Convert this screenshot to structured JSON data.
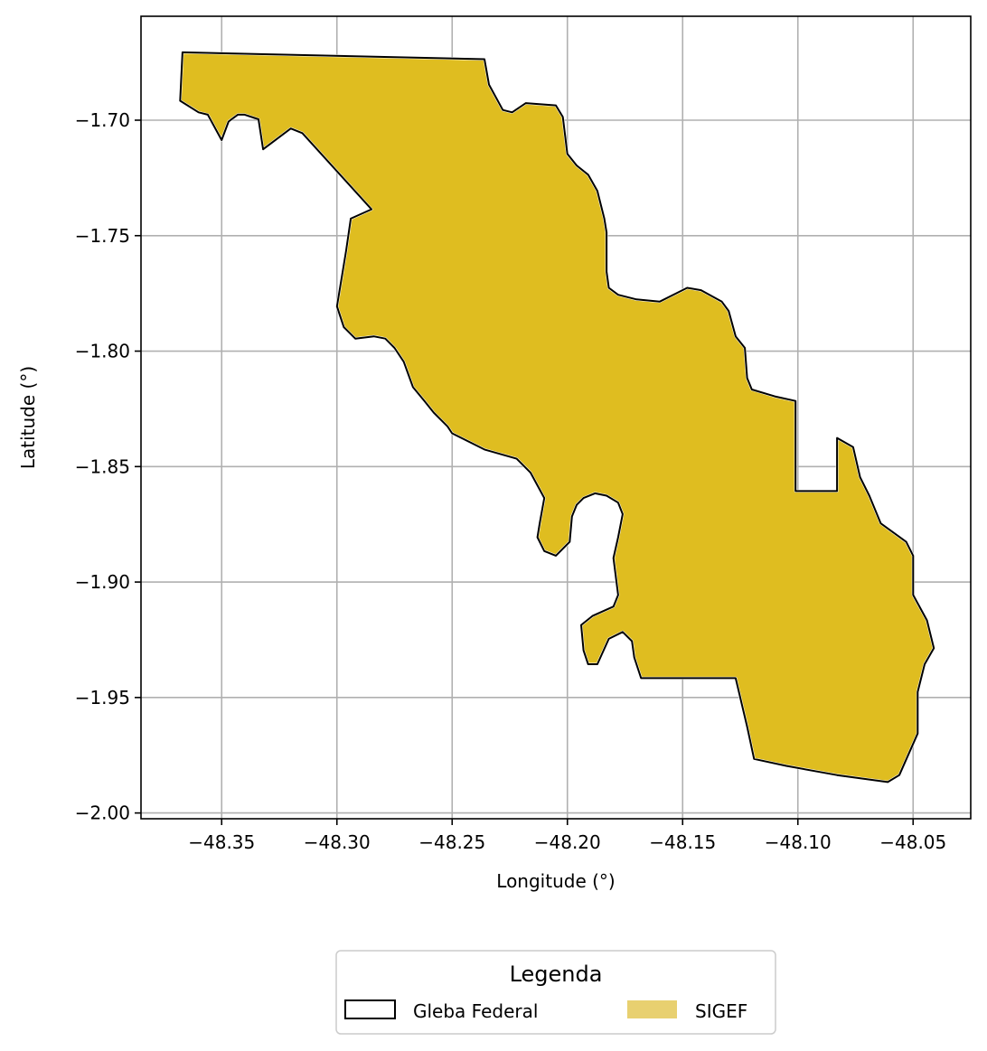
{
  "chart_data": {
    "type": "map",
    "xlabel": "Longitude (°)",
    "ylabel": "Latitude (°)",
    "xlim": [
      -48.385,
      -48.025
    ],
    "ylim": [
      -2.0025,
      -1.655
    ],
    "x_ticks": [
      -48.35,
      -48.3,
      -48.25,
      -48.2,
      -48.15,
      -48.1,
      -48.05
    ],
    "x_tick_labels": [
      "−48.35",
      "−48.30",
      "−48.25",
      "−48.20",
      "−48.15",
      "−48.10",
      "−48.05"
    ],
    "y_ticks": [
      -1.7,
      -1.75,
      -1.8,
      -1.85,
      -1.9,
      -1.95,
      -2.0
    ],
    "y_tick_labels": [
      "−1.70",
      "−1.75",
      "−1.80",
      "−1.85",
      "−1.90",
      "−1.95",
      "−2.00"
    ],
    "grid": true,
    "legend": {
      "title": "Legenda",
      "placement": "bottom-center",
      "entries": [
        {
          "label": "Gleba Federal",
          "style": "outline",
          "color": "#000000"
        },
        {
          "label": "SIGEF",
          "style": "fill",
          "color": "#e8d070"
        }
      ]
    },
    "layers": [
      {
        "name": "SIGEF",
        "fill": "#dfbd20",
        "stroke": "#ffffff",
        "coordinates": [
          [
            -48.367,
            -1.6706
          ],
          [
            -48.236,
            -1.6736
          ],
          [
            -48.234,
            -1.6846
          ],
          [
            -48.228,
            -1.6956
          ],
          [
            -48.224,
            -1.6966
          ],
          [
            -48.218,
            -1.6926
          ],
          [
            -48.205,
            -1.6936
          ],
          [
            -48.202,
            -1.6986
          ],
          [
            -48.2,
            -1.7146
          ],
          [
            -48.196,
            -1.7196
          ],
          [
            -48.191,
            -1.7236
          ],
          [
            -48.187,
            -1.7306
          ],
          [
            -48.184,
            -1.7426
          ],
          [
            -48.183,
            -1.7486
          ],
          [
            -48.183,
            -1.7656
          ],
          [
            -48.182,
            -1.7726
          ],
          [
            -48.178,
            -1.7756
          ],
          [
            -48.17,
            -1.7776
          ],
          [
            -48.16,
            -1.7786
          ],
          [
            -48.152,
            -1.7746
          ],
          [
            -48.148,
            -1.7726
          ],
          [
            -48.142,
            -1.7736
          ],
          [
            -48.133,
            -1.7786
          ],
          [
            -48.13,
            -1.7826
          ],
          [
            -48.127,
            -1.7936
          ],
          [
            -48.123,
            -1.7986
          ],
          [
            -48.122,
            -1.8116
          ],
          [
            -48.12,
            -1.8166
          ],
          [
            -48.11,
            -1.8196
          ],
          [
            -48.101,
            -1.8216
          ],
          [
            -48.101,
            -1.8606
          ],
          [
            -48.083,
            -1.8606
          ],
          [
            -48.083,
            -1.8376
          ],
          [
            -48.076,
            -1.8416
          ],
          [
            -48.073,
            -1.8546
          ],
          [
            -48.069,
            -1.8626
          ],
          [
            -48.064,
            -1.8746
          ],
          [
            -48.053,
            -1.8826
          ],
          [
            -48.05,
            -1.8886
          ],
          [
            -48.05,
            -1.9056
          ],
          [
            -48.044,
            -1.9166
          ],
          [
            -48.041,
            -1.9286
          ],
          [
            -48.045,
            -1.9356
          ],
          [
            -48.048,
            -1.9476
          ],
          [
            -48.048,
            -1.9656
          ],
          [
            -48.056,
            -1.9836
          ],
          [
            -48.061,
            -1.9866
          ],
          [
            -48.083,
            -1.9836
          ],
          [
            -48.105,
            -1.9796
          ],
          [
            -48.119,
            -1.9766
          ],
          [
            -48.122,
            -1.9626
          ],
          [
            -48.127,
            -1.9416
          ],
          [
            -48.154,
            -1.9416
          ],
          [
            -48.168,
            -1.9416
          ],
          [
            -48.171,
            -1.9326
          ],
          [
            -48.172,
            -1.9256
          ],
          [
            -48.176,
            -1.9216
          ],
          [
            -48.182,
            -1.9246
          ],
          [
            -48.187,
            -1.9356
          ],
          [
            -48.191,
            -1.9356
          ],
          [
            -48.193,
            -1.9296
          ],
          [
            -48.194,
            -1.9186
          ],
          [
            -48.189,
            -1.9146
          ],
          [
            -48.18,
            -1.9106
          ],
          [
            -48.178,
            -1.9056
          ],
          [
            -48.18,
            -1.8896
          ],
          [
            -48.178,
            -1.8806
          ],
          [
            -48.176,
            -1.8706
          ],
          [
            -48.178,
            -1.8656
          ],
          [
            -48.183,
            -1.8626
          ],
          [
            -48.188,
            -1.8616
          ],
          [
            -48.193,
            -1.8636
          ],
          [
            -48.196,
            -1.8666
          ],
          [
            -48.198,
            -1.8716
          ],
          [
            -48.199,
            -1.8826
          ],
          [
            -48.203,
            -1.8866
          ],
          [
            -48.205,
            -1.8886
          ],
          [
            -48.21,
            -1.8866
          ],
          [
            -48.213,
            -1.8806
          ],
          [
            -48.212,
            -1.8746
          ],
          [
            -48.21,
            -1.8636
          ],
          [
            -48.216,
            -1.8526
          ],
          [
            -48.222,
            -1.8466
          ],
          [
            -48.236,
            -1.8426
          ],
          [
            -48.25,
            -1.8356
          ],
          [
            -48.252,
            -1.8326
          ],
          [
            -48.258,
            -1.8266
          ],
          [
            -48.262,
            -1.8216
          ],
          [
            -48.267,
            -1.8156
          ],
          [
            -48.271,
            -1.8046
          ],
          [
            -48.275,
            -1.7986
          ],
          [
            -48.279,
            -1.7946
          ],
          [
            -48.284,
            -1.7936
          ],
          [
            -48.292,
            -1.7946
          ],
          [
            -48.297,
            -1.7896
          ],
          [
            -48.3,
            -1.7806
          ],
          [
            -48.296,
            -1.7566
          ],
          [
            -48.294,
            -1.7426
          ],
          [
            -48.285,
            -1.7386
          ],
          [
            -48.315,
            -1.7056
          ],
          [
            -48.32,
            -1.7036
          ],
          [
            -48.332,
            -1.7126
          ],
          [
            -48.334,
            -1.6996
          ],
          [
            -48.34,
            -1.6976
          ],
          [
            -48.343,
            -1.6976
          ],
          [
            -48.347,
            -1.7006
          ],
          [
            -48.35,
            -1.7086
          ],
          [
            -48.356,
            -1.6976
          ],
          [
            -48.36,
            -1.6966
          ],
          [
            -48.368,
            -1.6916
          ]
        ]
      },
      {
        "name": "Gleba Federal",
        "fill": "none",
        "stroke": "#000000",
        "coordinates": [
          [
            -48.367,
            -1.6706
          ],
          [
            -48.236,
            -1.6736
          ],
          [
            -48.234,
            -1.6846
          ],
          [
            -48.228,
            -1.6956
          ],
          [
            -48.224,
            -1.6966
          ],
          [
            -48.218,
            -1.6926
          ],
          [
            -48.205,
            -1.6936
          ],
          [
            -48.202,
            -1.6986
          ],
          [
            -48.2,
            -1.7146
          ],
          [
            -48.196,
            -1.7196
          ],
          [
            -48.191,
            -1.7236
          ],
          [
            -48.187,
            -1.7306
          ],
          [
            -48.184,
            -1.7426
          ],
          [
            -48.183,
            -1.7486
          ],
          [
            -48.183,
            -1.7656
          ],
          [
            -48.182,
            -1.7726
          ],
          [
            -48.178,
            -1.7756
          ],
          [
            -48.17,
            -1.7776
          ],
          [
            -48.16,
            -1.7786
          ],
          [
            -48.152,
            -1.7746
          ],
          [
            -48.148,
            -1.7726
          ],
          [
            -48.142,
            -1.7736
          ],
          [
            -48.133,
            -1.7786
          ],
          [
            -48.13,
            -1.7826
          ],
          [
            -48.127,
            -1.7936
          ],
          [
            -48.123,
            -1.7986
          ],
          [
            -48.122,
            -1.8116
          ],
          [
            -48.12,
            -1.8166
          ],
          [
            -48.11,
            -1.8196
          ],
          [
            -48.101,
            -1.8216
          ],
          [
            -48.101,
            -1.8606
          ],
          [
            -48.083,
            -1.8606
          ],
          [
            -48.083,
            -1.8376
          ],
          [
            -48.076,
            -1.8416
          ],
          [
            -48.073,
            -1.8546
          ],
          [
            -48.069,
            -1.8626
          ],
          [
            -48.064,
            -1.8746
          ],
          [
            -48.053,
            -1.8826
          ],
          [
            -48.05,
            -1.8886
          ],
          [
            -48.05,
            -1.9056
          ],
          [
            -48.044,
            -1.9166
          ],
          [
            -48.041,
            -1.9286
          ],
          [
            -48.045,
            -1.9356
          ],
          [
            -48.048,
            -1.9476
          ],
          [
            -48.048,
            -1.9656
          ],
          [
            -48.056,
            -1.9836
          ],
          [
            -48.061,
            -1.9866
          ],
          [
            -48.083,
            -1.9836
          ],
          [
            -48.105,
            -1.9796
          ],
          [
            -48.119,
            -1.9766
          ],
          [
            -48.122,
            -1.9626
          ],
          [
            -48.127,
            -1.9416
          ],
          [
            -48.154,
            -1.9416
          ],
          [
            -48.168,
            -1.9416
          ],
          [
            -48.171,
            -1.9326
          ],
          [
            -48.172,
            -1.9256
          ],
          [
            -48.176,
            -1.9216
          ],
          [
            -48.182,
            -1.9246
          ],
          [
            -48.187,
            -1.9356
          ],
          [
            -48.191,
            -1.9356
          ],
          [
            -48.193,
            -1.9296
          ],
          [
            -48.194,
            -1.9186
          ],
          [
            -48.189,
            -1.9146
          ],
          [
            -48.18,
            -1.9106
          ],
          [
            -48.178,
            -1.9056
          ],
          [
            -48.18,
            -1.8896
          ],
          [
            -48.178,
            -1.8806
          ],
          [
            -48.176,
            -1.8706
          ],
          [
            -48.178,
            -1.8656
          ],
          [
            -48.183,
            -1.8626
          ],
          [
            -48.188,
            -1.8616
          ],
          [
            -48.193,
            -1.8636
          ],
          [
            -48.196,
            -1.8666
          ],
          [
            -48.198,
            -1.8716
          ],
          [
            -48.199,
            -1.8826
          ],
          [
            -48.203,
            -1.8866
          ],
          [
            -48.205,
            -1.8886
          ],
          [
            -48.21,
            -1.8866
          ],
          [
            -48.213,
            -1.8806
          ],
          [
            -48.212,
            -1.8746
          ],
          [
            -48.21,
            -1.8636
          ],
          [
            -48.216,
            -1.8526
          ],
          [
            -48.222,
            -1.8466
          ],
          [
            -48.236,
            -1.8426
          ],
          [
            -48.25,
            -1.8356
          ],
          [
            -48.252,
            -1.8326
          ],
          [
            -48.258,
            -1.8266
          ],
          [
            -48.262,
            -1.8216
          ],
          [
            -48.267,
            -1.8156
          ],
          [
            -48.271,
            -1.8046
          ],
          [
            -48.275,
            -1.7986
          ],
          [
            -48.279,
            -1.7946
          ],
          [
            -48.284,
            -1.7936
          ],
          [
            -48.292,
            -1.7946
          ],
          [
            -48.297,
            -1.7896
          ],
          [
            -48.3,
            -1.7806
          ],
          [
            -48.296,
            -1.7566
          ],
          [
            -48.294,
            -1.7426
          ],
          [
            -48.285,
            -1.7386
          ],
          [
            -48.315,
            -1.7056
          ],
          [
            -48.32,
            -1.7036
          ],
          [
            -48.332,
            -1.7126
          ],
          [
            -48.334,
            -1.6996
          ],
          [
            -48.34,
            -1.6976
          ],
          [
            -48.343,
            -1.6976
          ],
          [
            -48.347,
            -1.7006
          ],
          [
            -48.35,
            -1.7086
          ],
          [
            -48.356,
            -1.6976
          ],
          [
            -48.36,
            -1.6966
          ],
          [
            -48.368,
            -1.6916
          ]
        ]
      }
    ]
  }
}
